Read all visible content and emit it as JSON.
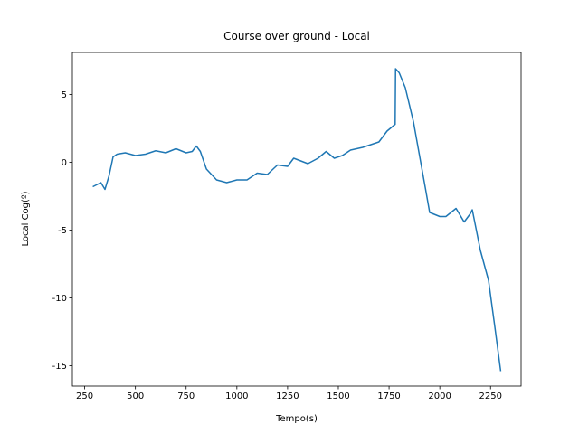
{
  "chart_data": {
    "type": "line",
    "title": "Course over ground - Local",
    "xlabel": "Tempo(s)",
    "ylabel": "Local Cog(º)",
    "x": [
      290,
      330,
      350,
      370,
      390,
      410,
      450,
      500,
      550,
      600,
      650,
      700,
      750,
      780,
      800,
      820,
      850,
      900,
      950,
      1000,
      1050,
      1100,
      1150,
      1200,
      1250,
      1280,
      1350,
      1400,
      1440,
      1480,
      1520,
      1560,
      1620,
      1660,
      1700,
      1740,
      1780,
      1782,
      1800,
      1830,
      1870,
      1900,
      1930,
      1950,
      2000,
      2030,
      2080,
      2120,
      2150,
      2160,
      2200,
      2240,
      2270,
      2300
    ],
    "series": [
      {
        "name": "Local Cog",
        "color": "#1f77b4",
        "values": [
          -1.8,
          -1.5,
          -2.0,
          -1.0,
          0.4,
          0.6,
          0.7,
          0.5,
          0.6,
          0.85,
          0.7,
          1.0,
          0.7,
          0.8,
          1.2,
          0.8,
          -0.5,
          -1.3,
          -1.5,
          -1.3,
          -1.3,
          -0.8,
          -0.9,
          -0.2,
          -0.3,
          0.3,
          -0.1,
          0.3,
          0.8,
          0.3,
          0.5,
          0.9,
          1.1,
          1.3,
          1.5,
          2.3,
          2.8,
          6.9,
          6.6,
          5.5,
          3.0,
          0.5,
          -2.0,
          -3.7,
          -4.0,
          -4.0,
          -3.4,
          -4.4,
          -3.8,
          -3.5,
          -6.5,
          -8.7,
          -12.0,
          -15.4
        ]
      }
    ],
    "xlim": [
      189.5,
      2400.5
    ],
    "xticks": [
      250,
      500,
      750,
      1000,
      1250,
      1500,
      1750,
      2000,
      2250
    ],
    "ylim": [
      -16.5,
      8.1
    ],
    "yticks": [
      -15,
      -10,
      -5,
      0,
      5
    ],
    "grid": false
  }
}
